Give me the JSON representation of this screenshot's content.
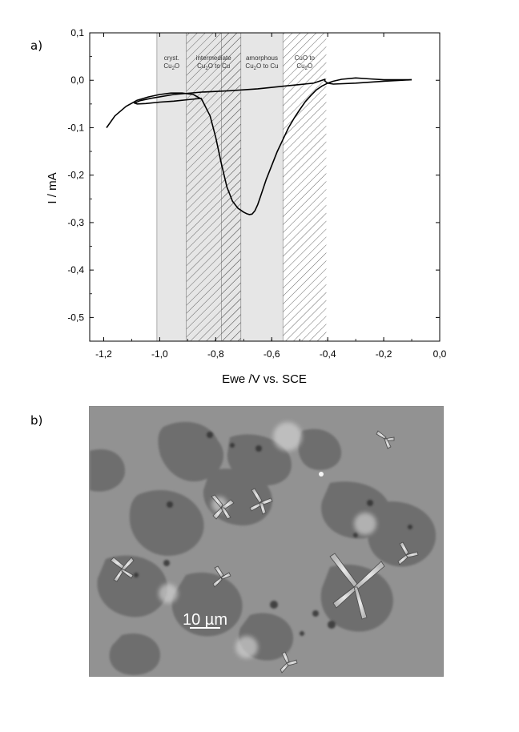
{
  "panels": {
    "a_label": "a)",
    "b_label": "b)"
  },
  "chart_data": {
    "type": "line",
    "title": "",
    "xlabel": "Ewe /V vs. SCE",
    "ylabel": "I / mA",
    "xlim": [
      -1.25,
      0.0
    ],
    "ylim": [
      -0.55,
      0.1
    ],
    "xticks": [
      -1.2,
      -1.0,
      -0.8,
      -0.6,
      -0.4,
      -0.2,
      0.0
    ],
    "xtick_labels": [
      "-1,2",
      "-1,0",
      "-0,8",
      "-0,6",
      "-0,4",
      "-0,2",
      "0,0"
    ],
    "yticks": [
      0.1,
      0.0,
      -0.1,
      -0.2,
      -0.3,
      -0.4,
      -0.5
    ],
    "ytick_labels": [
      "0,1",
      "0,0",
      "-0,1",
      "-0,2",
      "-0,3",
      "-0,4",
      "-0,5"
    ],
    "grid": false,
    "regions": [
      {
        "x0": -1.01,
        "x1": -0.905,
        "style": "gray",
        "lines": [
          "cryst.",
          "Cu2O"
        ]
      },
      {
        "x0": -0.905,
        "x1": -0.71,
        "style": "gray-hatched",
        "lines": [
          "intermediate",
          "Cu2O to Cu"
        ]
      },
      {
        "x0": -0.78,
        "x1": -0.71,
        "style": "hatched",
        "lines": []
      },
      {
        "x0": -0.71,
        "x1": -0.56,
        "style": "gray",
        "lines": [
          "amorphous",
          "Cu2O to Cu"
        ]
      },
      {
        "x0": -0.56,
        "x1": -0.405,
        "style": "hatched",
        "lines": [
          "CuO to",
          "Cu2O"
        ]
      }
    ],
    "series": [
      {
        "color": "#000000",
        "x": [
          -1.19,
          -1.16,
          -1.12,
          -1.08,
          -1.04,
          -1.0,
          -0.96,
          -0.92,
          -0.88,
          -0.85,
          -0.82,
          -0.8,
          -0.78,
          -0.76,
          -0.74,
          -0.72,
          -0.7,
          -0.69,
          -0.68,
          -0.67,
          -0.66,
          -0.65,
          -0.64,
          -0.62,
          -0.6,
          -0.58,
          -0.56,
          -0.54,
          -0.52,
          -0.5,
          -0.48,
          -0.46,
          -0.44,
          -0.42,
          -0.4,
          -0.38,
          -0.35,
          -0.3,
          -0.25,
          -0.2,
          -0.15,
          -0.1
        ],
        "y": [
          -0.1,
          -0.075,
          -0.055,
          -0.042,
          -0.035,
          -0.03,
          -0.027,
          -0.027,
          -0.03,
          -0.04,
          -0.075,
          -0.12,
          -0.175,
          -0.225,
          -0.255,
          -0.27,
          -0.278,
          -0.281,
          -0.283,
          -0.282,
          -0.275,
          -0.262,
          -0.245,
          -0.21,
          -0.18,
          -0.15,
          -0.125,
          -0.1,
          -0.08,
          -0.062,
          -0.045,
          -0.032,
          -0.02,
          -0.012,
          -0.006,
          -0.002,
          0.002,
          0.005,
          0.003,
          0.001,
          0.001,
          0.001
        ]
      },
      {
        "color": "#000000",
        "x": [
          -0.1,
          -0.2,
          -0.3,
          -0.38,
          -0.4,
          -0.41,
          -0.41,
          -0.45,
          -0.55,
          -0.65,
          -0.75,
          -0.85,
          -0.95,
          -1.03,
          -1.07,
          -1.09,
          -1.08,
          -1.05,
          -1.0,
          -0.95,
          -0.9,
          -0.85
        ],
        "y": [
          0.001,
          -0.002,
          -0.006,
          -0.008,
          -0.006,
          -0.002,
          0.002,
          -0.006,
          -0.012,
          -0.018,
          -0.022,
          -0.025,
          -0.03,
          -0.038,
          -0.043,
          -0.048,
          -0.05,
          -0.049,
          -0.046,
          -0.044,
          -0.041,
          -0.038
        ]
      }
    ]
  },
  "sem": {
    "scale_bar_label": "10 µm",
    "image_description": "grayscale micrograph"
  }
}
